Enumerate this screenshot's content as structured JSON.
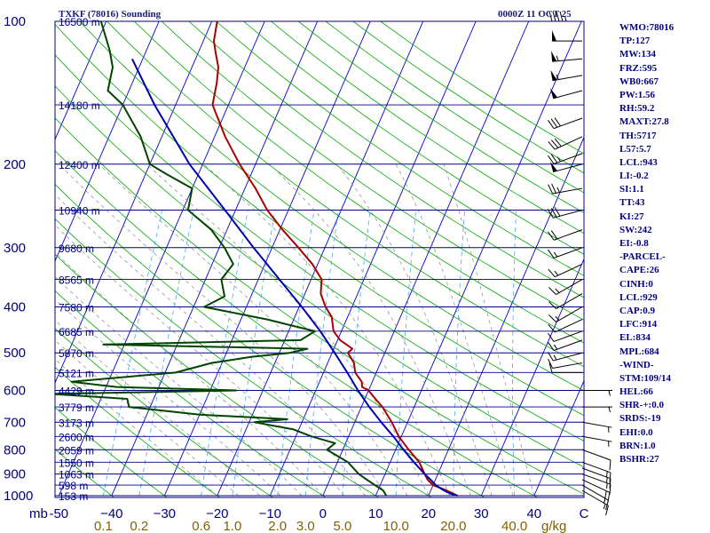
{
  "header": {
    "station_title": "TXKF (78016) Sounding",
    "valid_time": "0000Z 11 OCT 25"
  },
  "indices": [
    "WMO:78016",
    "TP:127",
    "MW:134",
    "FRZ:595",
    "WB0:667",
    "PW:1.56",
    "RH:59.2",
    "MAXT:27.8",
    "TH:5717",
    "L57:5.7",
    "LCL:943",
    "LI:-0.2",
    "SI:1.1",
    "TT:43",
    "KI:27",
    "SW:242",
    "EI:-0.8",
    "-PARCEL-",
    "CAPE:26",
    "CINH:0",
    "LCL:929",
    "CAP:0.9",
    "LFC:914",
    "EL:834",
    "MPL:684",
    "-WIND-",
    "STM:109/14",
    "HEL:66",
    "SHR-+:0.0",
    "SRDS:-19",
    "EHI:0.0",
    "BRN:1.0",
    "BSHR:27"
  ],
  "colors": {
    "isobar": "#000080",
    "isotherm": "#0000cc",
    "dry_adiabat": "#00aa00",
    "moist_adiabat": "#888888",
    "mixing_ratio": "#44aaff",
    "temperature": "#aa0000",
    "dewpoint": "#004400",
    "parcel": "#0000aa",
    "pressure_label": "#000080",
    "height_label": "#000080",
    "temp_label": "#000080",
    "mixing_label": "#806000",
    "barb": "#000000"
  },
  "chart_data": {
    "type": "line",
    "title": "TXKF (78016) Sounding",
    "subtitle": "0000Z 11 OCT 25",
    "xlabel": "C",
    "ylabel": "mb",
    "x_range_at_surface": [
      -50,
      50
    ],
    "y_range": [
      1000,
      100
    ],
    "pressure_ticks": [
      100,
      200,
      300,
      400,
      500,
      600,
      700,
      800,
      900,
      1000
    ],
    "x_ticks": [
      -50,
      -40,
      -30,
      -20,
      -10,
      0,
      10,
      20,
      30,
      40
    ],
    "x_tick_labels": [
      "-50",
      "−40",
      "−30",
      "−20",
      "−10",
      "0",
      "10",
      "20",
      "30",
      "40"
    ],
    "mixing_ratio_labels": [
      {
        "w": 0.1,
        "label": "0.1"
      },
      {
        "w": 0.2,
        "label": "0.2"
      },
      {
        "w": 0.6,
        "label": "0.6"
      },
      {
        "w": 1.0,
        "label": "1.0"
      },
      {
        "w": 2.0,
        "label": "2.0"
      },
      {
        "w": 3.0,
        "label": "3.0"
      },
      {
        "w": 5.0,
        "label": "5.0"
      },
      {
        "w": 10.0,
        "label": "10.0"
      },
      {
        "w": 20.0,
        "label": "20.0"
      },
      {
        "w": 40.0,
        "label": "40.0"
      }
    ],
    "mixing_units": "g/kg",
    "height_levels": [
      {
        "p": 100,
        "label": "16500 m"
      },
      {
        "p": 150,
        "label": "14180 m"
      },
      {
        "p": 200,
        "label": "12400 m"
      },
      {
        "p": 250,
        "label": "10940 m"
      },
      {
        "p": 300,
        "label": "9680 m"
      },
      {
        "p": 350,
        "label": "8565 m"
      },
      {
        "p": 400,
        "label": "7580 m"
      },
      {
        "p": 450,
        "label": "6685 m"
      },
      {
        "p": 500,
        "label": "5870 m"
      },
      {
        "p": 550,
        "label": "5121 m"
      },
      {
        "p": 600,
        "label": "4429 m"
      },
      {
        "p": 650,
        "label": "3779 m"
      },
      {
        "p": 700,
        "label": "3173 m"
      },
      {
        "p": 750,
        "label": "2600 m"
      },
      {
        "p": 800,
        "label": "2059 m"
      },
      {
        "p": 850,
        "label": "1550 m"
      },
      {
        "p": 900,
        "label": "1063 m"
      },
      {
        "p": 950,
        "label": "598 m"
      },
      {
        "p": 1000,
        "label": "153 m"
      }
    ],
    "series": [
      {
        "name": "temperature",
        "points": [
          [
            1000,
            25.5
          ],
          [
            975,
            23
          ],
          [
            950,
            20
          ],
          [
            925,
            18.5
          ],
          [
            900,
            17.5
          ],
          [
            850,
            15.5
          ],
          [
            800,
            12.5
          ],
          [
            750,
            9.5
          ],
          [
            700,
            7
          ],
          [
            650,
            4
          ],
          [
            625,
            2
          ],
          [
            600,
            0
          ],
          [
            590,
            -1.5
          ],
          [
            575,
            -2
          ],
          [
            550,
            -4
          ],
          [
            525,
            -5
          ],
          [
            500,
            -7
          ],
          [
            490,
            -6.5
          ],
          [
            470,
            -9.5
          ],
          [
            450,
            -11.5
          ],
          [
            420,
            -13
          ],
          [
            400,
            -15
          ],
          [
            375,
            -17
          ],
          [
            350,
            -18
          ],
          [
            325,
            -21
          ],
          [
            300,
            -25
          ],
          [
            275,
            -29.5
          ],
          [
            250,
            -34
          ],
          [
            225,
            -38
          ],
          [
            200,
            -43
          ],
          [
            175,
            -48
          ],
          [
            150,
            -53
          ],
          [
            135,
            -54
          ],
          [
            125,
            -55
          ],
          [
            115,
            -57
          ],
          [
            110,
            -58
          ],
          [
            100,
            -59
          ]
        ]
      },
      {
        "name": "dewpoint",
        "points": [
          [
            1000,
            12
          ],
          [
            975,
            11
          ],
          [
            950,
            9
          ],
          [
            925,
            7
          ],
          [
            900,
            5
          ],
          [
            850,
            2
          ],
          [
            800,
            -3
          ],
          [
            775,
            -2
          ],
          [
            750,
            -7
          ],
          [
            725,
            -11
          ],
          [
            700,
            -19
          ],
          [
            690,
            -13
          ],
          [
            675,
            -30
          ],
          [
            650,
            -44
          ],
          [
            625,
            -45
          ],
          [
            610,
            -60
          ],
          [
            600,
            -25
          ],
          [
            590,
            -48
          ],
          [
            575,
            -57
          ],
          [
            550,
            -38
          ],
          [
            525,
            -32
          ],
          [
            510,
            -25
          ],
          [
            500,
            -18
          ],
          [
            490,
            -15
          ],
          [
            480,
            -54
          ],
          [
            470,
            -17
          ],
          [
            450,
            -15
          ],
          [
            440,
            -19
          ],
          [
            425,
            -25
          ],
          [
            400,
            -38
          ],
          [
            380,
            -35
          ],
          [
            350,
            -37
          ],
          [
            325,
            -36
          ],
          [
            300,
            -39
          ],
          [
            275,
            -43
          ],
          [
            250,
            -49
          ],
          [
            225,
            -50
          ],
          [
            210,
            -56
          ],
          [
            200,
            -60
          ],
          [
            175,
            -64
          ],
          [
            150,
            -70
          ],
          [
            140,
            -74
          ],
          [
            125,
            -75
          ],
          [
            115,
            -77
          ],
          [
            100,
            -81
          ]
        ]
      },
      {
        "name": "parcel",
        "points": [
          [
            1000,
            25.5
          ],
          [
            990,
            24
          ],
          [
            975,
            22.5
          ],
          [
            950,
            20.5
          ],
          [
            929,
            19.3
          ],
          [
            900,
            17.5
          ],
          [
            850,
            14.5
          ],
          [
            800,
            11.5
          ],
          [
            750,
            8.5
          ],
          [
            700,
            5
          ],
          [
            650,
            1.5
          ],
          [
            600,
            -2
          ],
          [
            550,
            -5.5
          ],
          [
            500,
            -9.5
          ],
          [
            450,
            -14
          ],
          [
            400,
            -19.5
          ],
          [
            350,
            -26
          ],
          [
            300,
            -33.5
          ],
          [
            250,
            -42
          ],
          [
            200,
            -52.5
          ],
          [
            150,
            -64
          ],
          [
            120,
            -72
          ]
        ]
      }
    ],
    "wind_barbs": [
      {
        "p": 100,
        "dir": 270,
        "kt": 45
      },
      {
        "p": 110,
        "dir": 270,
        "kt": 50
      },
      {
        "p": 120,
        "dir": 265,
        "kt": 55
      },
      {
        "p": 130,
        "dir": 260,
        "kt": 55
      },
      {
        "p": 140,
        "dir": 255,
        "kt": 50
      },
      {
        "p": 160,
        "dir": 250,
        "kt": 30
      },
      {
        "p": 175,
        "dir": 245,
        "kt": 30
      },
      {
        "p": 190,
        "dir": 250,
        "kt": 25
      },
      {
        "p": 200,
        "dir": 255,
        "kt": 50
      },
      {
        "p": 225,
        "dir": 260,
        "kt": 25
      },
      {
        "p": 250,
        "dir": 255,
        "kt": 30
      },
      {
        "p": 275,
        "dir": 250,
        "kt": 20
      },
      {
        "p": 300,
        "dir": 250,
        "kt": 15
      },
      {
        "p": 325,
        "dir": 245,
        "kt": 15
      },
      {
        "p": 350,
        "dir": 240,
        "kt": 15
      },
      {
        "p": 375,
        "dir": 240,
        "kt": 10
      },
      {
        "p": 400,
        "dir": 240,
        "kt": 15
      },
      {
        "p": 425,
        "dir": 245,
        "kt": 10
      },
      {
        "p": 450,
        "dir": 250,
        "kt": 10
      },
      {
        "p": 470,
        "dir": 250,
        "kt": 15
      },
      {
        "p": 500,
        "dir": 255,
        "kt": 15
      },
      {
        "p": 525,
        "dir": 260,
        "kt": 10
      },
      {
        "p": 550,
        "dir": 270,
        "kt": 10
      },
      {
        "p": 600,
        "dir": 90,
        "kt": 5
      },
      {
        "p": 650,
        "dir": 90,
        "kt": 5
      },
      {
        "p": 700,
        "dir": 100,
        "kt": 5
      },
      {
        "p": 750,
        "dir": 100,
        "kt": 5
      },
      {
        "p": 800,
        "dir": 110,
        "kt": 10
      },
      {
        "p": 850,
        "dir": 110,
        "kt": 15
      },
      {
        "p": 875,
        "dir": 110,
        "kt": 15
      },
      {
        "p": 900,
        "dir": 110,
        "kt": 15
      },
      {
        "p": 925,
        "dir": 115,
        "kt": 20
      },
      {
        "p": 950,
        "dir": 120,
        "kt": 15
      },
      {
        "p": 975,
        "dir": 120,
        "kt": 15
      }
    ]
  }
}
